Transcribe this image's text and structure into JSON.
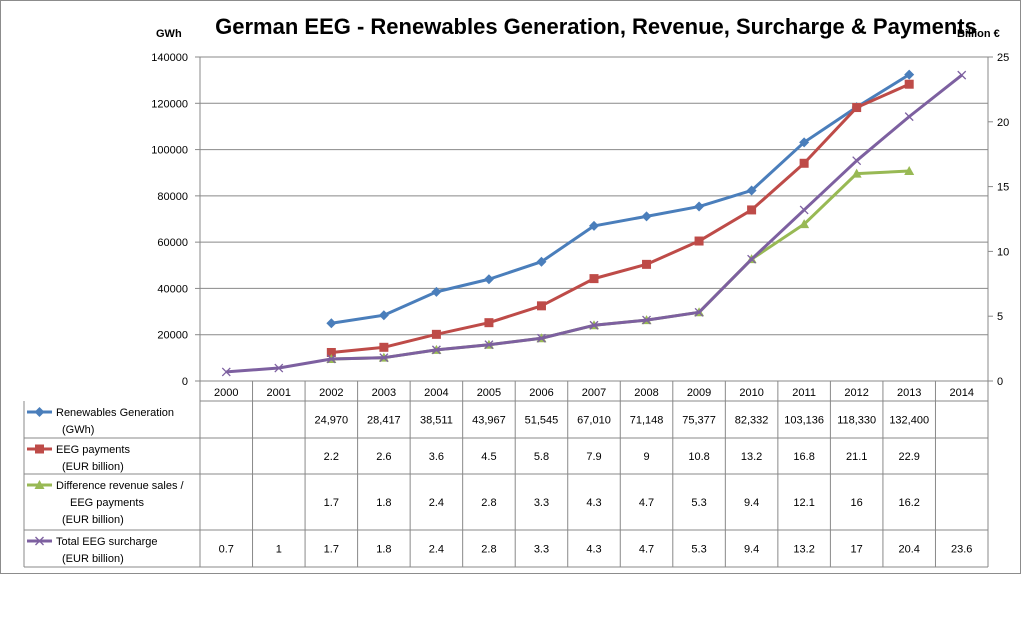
{
  "chart_data": {
    "type": "line",
    "title": "German EEG - Renewables Generation, Revenue, Surcharge & Payments",
    "y_left_label": "GWh",
    "y_right_label": "Billion €",
    "y_left_range": [
      0,
      140000
    ],
    "y_left_ticks": [
      "0",
      "20000",
      "40000",
      "60000",
      "80000",
      "100000",
      "120000",
      "140000"
    ],
    "y_right_range": [
      0,
      25
    ],
    "y_right_ticks": [
      "0",
      "5",
      "10",
      "15",
      "20",
      "25"
    ],
    "grid": "horizontal",
    "legend": "data-table",
    "categories": [
      "2000",
      "2001",
      "2002",
      "2003",
      "2004",
      "2005",
      "2006",
      "2007",
      "2008",
      "2009",
      "2010",
      "2011",
      "2012",
      "2013",
      "2014"
    ],
    "series": [
      {
        "name": "Renewables Generation\n(GWh)",
        "axis": "left",
        "color": "#4a7ebb",
        "marker": "diamond",
        "values": [
          null,
          null,
          24970,
          28417,
          38511,
          43967,
          51545,
          67010,
          71148,
          75377,
          82332,
          103136,
          118330,
          132400,
          null
        ],
        "labels": [
          "",
          "",
          "24,970",
          "28,417",
          "38,511",
          "43,967",
          "51,545",
          "67,010",
          "71,148",
          "75,377",
          "82,332",
          "103,136",
          "118,330",
          "132,400",
          ""
        ]
      },
      {
        "name": "EEG payments\n(EUR billion)",
        "axis": "right",
        "color": "#be4b48",
        "marker": "square",
        "values": [
          null,
          null,
          2.2,
          2.6,
          3.6,
          4.5,
          5.8,
          7.9,
          9,
          10.8,
          13.2,
          16.8,
          21.1,
          22.9,
          null
        ],
        "labels": [
          "",
          "",
          "2.2",
          "2.6",
          "3.6",
          "4.5",
          "5.8",
          "7.9",
          "9",
          "10.8",
          "13.2",
          "16.8",
          "21.1",
          "22.9",
          ""
        ]
      },
      {
        "name": "Difference revenue sales /\nEEG payments\n(EUR billion)",
        "axis": "right",
        "color": "#98b954",
        "marker": "triangle",
        "values": [
          null,
          null,
          1.7,
          1.8,
          2.4,
          2.8,
          3.3,
          4.3,
          4.7,
          5.3,
          9.4,
          12.1,
          16,
          16.2,
          null
        ],
        "labels": [
          "",
          "",
          "1.7",
          "1.8",
          "2.4",
          "2.8",
          "3.3",
          "4.3",
          "4.7",
          "5.3",
          "9.4",
          "12.1",
          "16",
          "16.2",
          ""
        ]
      },
      {
        "name": "Total EEG surcharge\n(EUR billion)",
        "axis": "right",
        "color": "#7d60a0",
        "marker": "x",
        "values": [
          0.7,
          1,
          1.7,
          1.8,
          2.4,
          2.8,
          3.3,
          4.3,
          4.7,
          5.3,
          9.4,
          13.2,
          17,
          20.4,
          23.6
        ],
        "labels": [
          "0.7",
          "1",
          "1.7",
          "1.8",
          "2.4",
          "2.8",
          "3.3",
          "4.3",
          "4.7",
          "5.3",
          "9.4",
          "13.2",
          "17",
          "20.4",
          "23.6"
        ]
      }
    ]
  }
}
